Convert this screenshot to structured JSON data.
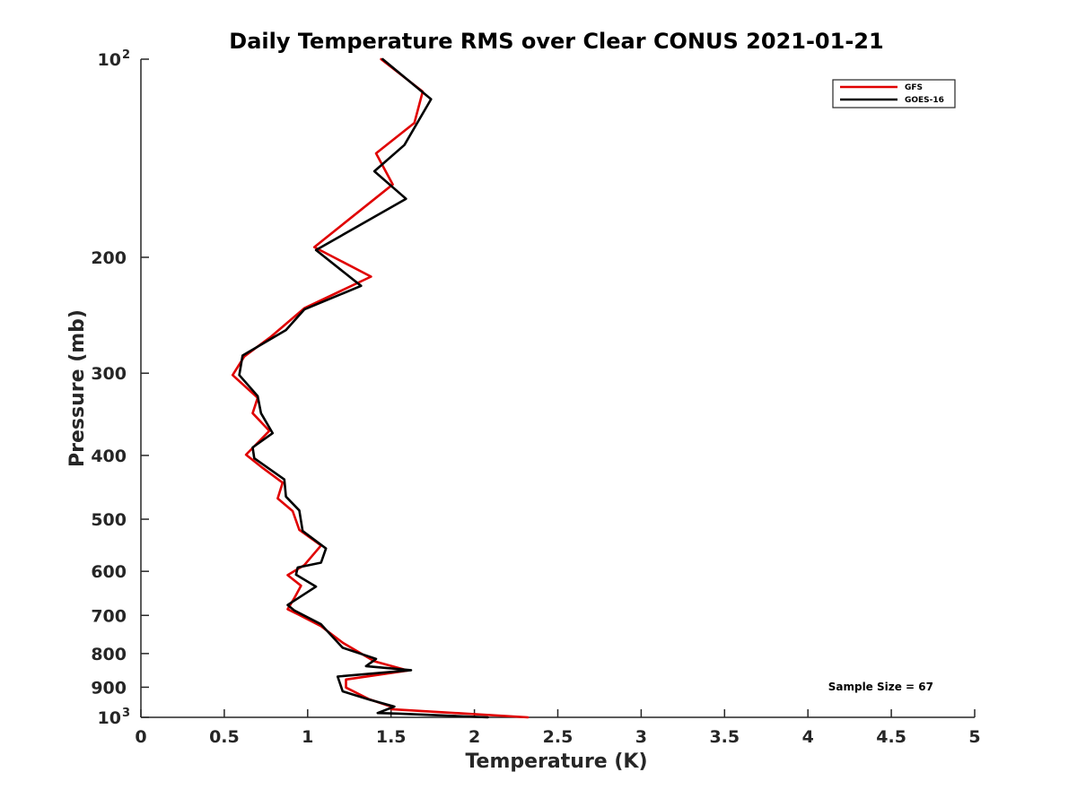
{
  "chart_data": {
    "type": "line",
    "title": "Daily Temperature RMS over Clear CONUS 2021-01-21",
    "xlabel": "Temperature (K)",
    "ylabel": "Pressure (mb)",
    "xlim": [
      0,
      5
    ],
    "ylim": [
      100,
      1000
    ],
    "y_scale": "log",
    "y_reversed": true,
    "grid": false,
    "legend_position": "top-right",
    "x_ticks": [
      {
        "value": 0,
        "label": "0"
      },
      {
        "value": 0.5,
        "label": "0.5"
      },
      {
        "value": 1,
        "label": "1"
      },
      {
        "value": 1.5,
        "label": "1.5"
      },
      {
        "value": 2,
        "label": "2"
      },
      {
        "value": 2.5,
        "label": "2.5"
      },
      {
        "value": 3,
        "label": "3"
      },
      {
        "value": 3.5,
        "label": "3.5"
      },
      {
        "value": 4,
        "label": "4"
      },
      {
        "value": 4.5,
        "label": "4.5"
      },
      {
        "value": 5,
        "label": "5"
      }
    ],
    "y_ticks": [
      {
        "value": 100,
        "label": "10",
        "sup": "2"
      },
      {
        "value": 200,
        "label": "200"
      },
      {
        "value": 300,
        "label": "300"
      },
      {
        "value": 400,
        "label": "400"
      },
      {
        "value": 500,
        "label": "500"
      },
      {
        "value": 600,
        "label": "600"
      },
      {
        "value": 700,
        "label": "700"
      },
      {
        "value": 800,
        "label": "800"
      },
      {
        "value": 900,
        "label": "900"
      },
      {
        "value": 1000,
        "label": "10",
        "sup": "3"
      }
    ],
    "series": [
      {
        "name": "GFS",
        "color": "#e00000",
        "points": [
          [
            1.44,
            100
          ],
          [
            1.69,
            112
          ],
          [
            1.64,
            125
          ],
          [
            1.41,
            139
          ],
          [
            1.51,
            155
          ],
          [
            1.04,
            193
          ],
          [
            1.38,
            214
          ],
          [
            0.98,
            239
          ],
          [
            0.78,
            264
          ],
          [
            0.62,
            283
          ],
          [
            0.55,
            302
          ],
          [
            0.7,
            327
          ],
          [
            0.67,
            345
          ],
          [
            0.77,
            367
          ],
          [
            0.63,
            399
          ],
          [
            0.72,
            416
          ],
          [
            0.85,
            440
          ],
          [
            0.82,
            465
          ],
          [
            0.91,
            486
          ],
          [
            0.95,
            519
          ],
          [
            1.08,
            548
          ],
          [
            0.98,
            587
          ],
          [
            0.88,
            608
          ],
          [
            0.96,
            631
          ],
          [
            0.92,
            659
          ],
          [
            0.88,
            685
          ],
          [
            0.95,
            699
          ],
          [
            1.08,
            727
          ],
          [
            1.21,
            770
          ],
          [
            1.4,
            822
          ],
          [
            1.6,
            849
          ],
          [
            1.23,
            876
          ],
          [
            1.23,
            901
          ],
          [
            1.37,
            939
          ],
          [
            1.51,
            965
          ],
          [
            1.5,
            972
          ],
          [
            2.32,
            1000
          ]
        ]
      },
      {
        "name": "GOES-16",
        "color": "#000000",
        "points": [
          [
            1.45,
            100
          ],
          [
            1.74,
            115
          ],
          [
            1.58,
            135
          ],
          [
            1.4,
            148
          ],
          [
            1.59,
            163
          ],
          [
            1.05,
            195
          ],
          [
            1.32,
            221
          ],
          [
            0.98,
            240
          ],
          [
            0.87,
            258
          ],
          [
            0.61,
            282
          ],
          [
            0.59,
            302
          ],
          [
            0.7,
            325
          ],
          [
            0.72,
            345
          ],
          [
            0.79,
            370
          ],
          [
            0.67,
            389
          ],
          [
            0.68,
            404
          ],
          [
            0.86,
            435
          ],
          [
            0.87,
            462
          ],
          [
            0.95,
            485
          ],
          [
            0.97,
            521
          ],
          [
            1.11,
            554
          ],
          [
            1.08,
            582
          ],
          [
            0.94,
            592
          ],
          [
            0.93,
            607
          ],
          [
            1.05,
            633
          ],
          [
            0.88,
            675
          ],
          [
            0.92,
            688
          ],
          [
            1.08,
            722
          ],
          [
            1.21,
            784
          ],
          [
            1.41,
            815
          ],
          [
            1.35,
            836
          ],
          [
            1.62,
            848
          ],
          [
            1.18,
            867
          ],
          [
            1.21,
            913
          ],
          [
            1.37,
            940
          ],
          [
            1.52,
            963
          ],
          [
            1.42,
            985
          ],
          [
            1.54,
            987
          ],
          [
            2.08,
            1000
          ]
        ]
      }
    ],
    "annotations": [
      "Sample Size = 67"
    ]
  }
}
